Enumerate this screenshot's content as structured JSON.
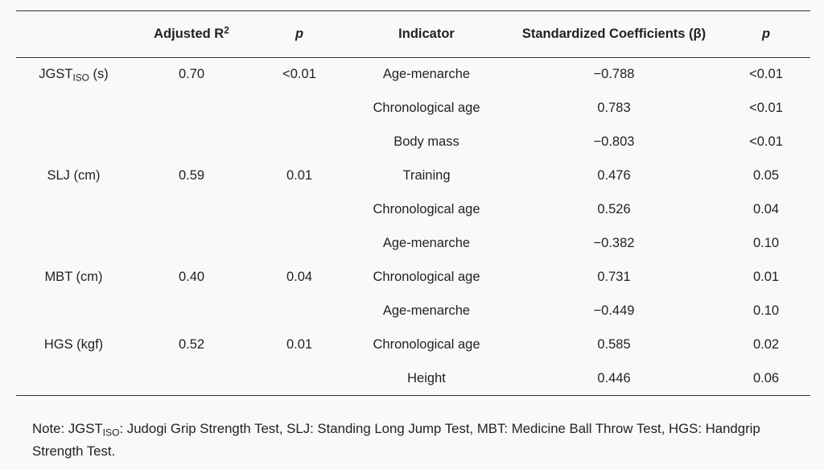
{
  "headers": {
    "blank": "",
    "adj_r2_base": "Adjusted R",
    "adj_r2_sup": "2",
    "p1": "p",
    "indicator": "Indicator",
    "beta": "Standardized Coefficients (β)",
    "p2": "p"
  },
  "rows": [
    {
      "outcome": "JGST",
      "outcome_sub": "ISO",
      "outcome_suffix": " (s)",
      "r2": "0.70",
      "p_model": "<0.01",
      "indicator": "Age-menarche",
      "beta": "−0.788",
      "p_ind": "<0.01"
    },
    {
      "outcome": "",
      "outcome_sub": "",
      "outcome_suffix": "",
      "r2": "",
      "p_model": "",
      "indicator": "Chronological age",
      "beta": "0.783",
      "p_ind": "<0.01"
    },
    {
      "outcome": "",
      "outcome_sub": "",
      "outcome_suffix": "",
      "r2": "",
      "p_model": "",
      "indicator": "Body mass",
      "beta": "−0.803",
      "p_ind": "<0.01"
    },
    {
      "outcome": "SLJ (cm)",
      "outcome_sub": "",
      "outcome_suffix": "",
      "r2": "0.59",
      "p_model": "0.01",
      "indicator": "Training",
      "beta": "0.476",
      "p_ind": "0.05"
    },
    {
      "outcome": "",
      "outcome_sub": "",
      "outcome_suffix": "",
      "r2": "",
      "p_model": "",
      "indicator": "Chronological age",
      "beta": "0.526",
      "p_ind": "0.04"
    },
    {
      "outcome": "",
      "outcome_sub": "",
      "outcome_suffix": "",
      "r2": "",
      "p_model": "",
      "indicator": "Age-menarche",
      "beta": "−0.382",
      "p_ind": "0.10"
    },
    {
      "outcome": "MBT (cm)",
      "outcome_sub": "",
      "outcome_suffix": "",
      "r2": "0.40",
      "p_model": "0.04",
      "indicator": "Chronological age",
      "beta": "0.731",
      "p_ind": "0.01"
    },
    {
      "outcome": "",
      "outcome_sub": "",
      "outcome_suffix": "",
      "r2": "",
      "p_model": "",
      "indicator": "Age-menarche",
      "beta": "−0.449",
      "p_ind": "0.10"
    },
    {
      "outcome": "HGS (kgf)",
      "outcome_sub": "",
      "outcome_suffix": "",
      "r2": "0.52",
      "p_model": "0.01",
      "indicator": "Chronological age",
      "beta": "0.585",
      "p_ind": "0.02"
    },
    {
      "outcome": "",
      "outcome_sub": "",
      "outcome_suffix": "",
      "r2": "",
      "p_model": "",
      "indicator": "Height",
      "beta": "0.446",
      "p_ind": "0.06"
    }
  ],
  "note": {
    "prefix": "Note: JGST",
    "sub": "ISO",
    "text": ": Judogi Grip Strength Test, SLJ: Standing Long Jump Test, MBT: Medicine Ball Throw Test, HGS: Handgrip Strength Test."
  }
}
